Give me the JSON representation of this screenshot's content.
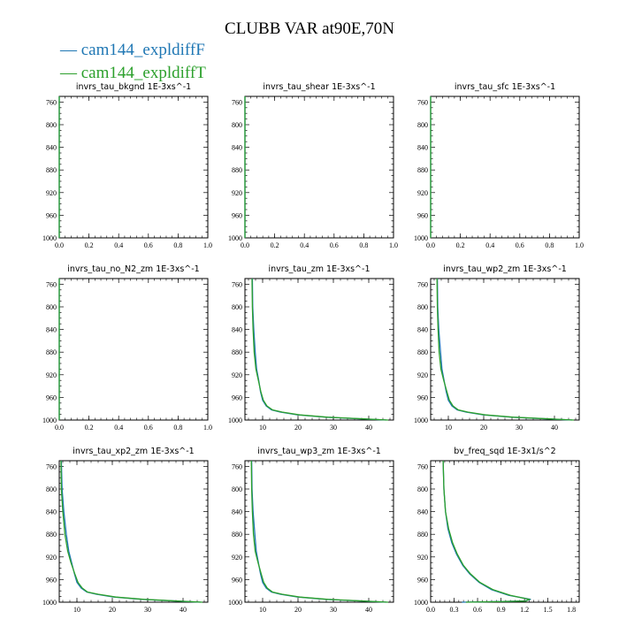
{
  "title": "CLUBB VAR at90E,70N",
  "legend": [
    {
      "label": "— cam144_expldiffF",
      "color": "#1f77b4"
    },
    {
      "label": "— cam144_expldiffT",
      "color": "#2ca02c"
    }
  ],
  "chart_data": [
    {
      "type": "line",
      "title": "invrs_tau_bkgnd 1E-3xs^-1",
      "xlim": [
        0,
        1
      ],
      "ylim": [
        1000,
        750
      ],
      "xticks": [
        0.0,
        0.2,
        0.4,
        0.6,
        0.8,
        1.0
      ],
      "xtick_labels": [
        "0.0",
        "0.2",
        "0.4",
        "0.6",
        "0.8",
        "1.0"
      ],
      "yticks": [
        760,
        800,
        840,
        880,
        920,
        960,
        1000
      ],
      "series": [
        {
          "name": "cam144_expldiffF",
          "color": "#1f77b4",
          "x": [
            0,
            0
          ],
          "y": [
            750,
            1000
          ]
        },
        {
          "name": "cam144_expldiffT",
          "color": "#2ca02c",
          "x": [
            0,
            0
          ],
          "y": [
            750,
            1000
          ]
        }
      ]
    },
    {
      "type": "line",
      "title": "invrs_tau_shear 1E-3xs^-1",
      "xlim": [
        0,
        1
      ],
      "ylim": [
        1000,
        750
      ],
      "xticks": [
        0.0,
        0.2,
        0.4,
        0.6,
        0.8,
        1.0
      ],
      "xtick_labels": [
        "0.0",
        "0.2",
        "0.4",
        "0.6",
        "0.8",
        "1.0"
      ],
      "yticks": [
        760,
        800,
        840,
        880,
        920,
        960,
        1000
      ],
      "series": [
        {
          "name": "cam144_expldiffF",
          "color": "#1f77b4",
          "x": [
            0,
            0
          ],
          "y": [
            750,
            1000
          ]
        },
        {
          "name": "cam144_expldiffT",
          "color": "#2ca02c",
          "x": [
            0,
            0
          ],
          "y": [
            750,
            1000
          ]
        }
      ]
    },
    {
      "type": "line",
      "title": "invrs_tau_sfc 1E-3xs^-1",
      "xlim": [
        0,
        1
      ],
      "ylim": [
        1000,
        750
      ],
      "xticks": [
        0.0,
        0.2,
        0.4,
        0.6,
        0.8,
        1.0
      ],
      "xtick_labels": [
        "0.0",
        "0.2",
        "0.4",
        "0.6",
        "0.8",
        "1.0"
      ],
      "yticks": [
        760,
        800,
        840,
        880,
        920,
        960,
        1000
      ],
      "series": [
        {
          "name": "cam144_expldiffF",
          "color": "#1f77b4",
          "x": [
            0,
            0
          ],
          "y": [
            750,
            1000
          ]
        },
        {
          "name": "cam144_expldiffT",
          "color": "#2ca02c",
          "x": [
            0,
            0
          ],
          "y": [
            750,
            1000
          ]
        }
      ]
    },
    {
      "type": "line",
      "title": "invrs_tau_no_N2_zm 1E-3xs^-1",
      "xlim": [
        0,
        1
      ],
      "ylim": [
        1000,
        750
      ],
      "xticks": [
        0.0,
        0.2,
        0.4,
        0.6,
        0.8,
        1.0
      ],
      "xtick_labels": [
        "0.0",
        "0.2",
        "0.4",
        "0.6",
        "0.8",
        "1.0"
      ],
      "yticks": [
        760,
        800,
        840,
        880,
        920,
        960,
        1000
      ],
      "series": [
        {
          "name": "cam144_expldiffF",
          "color": "#1f77b4",
          "x": [
            0,
            0
          ],
          "y": [
            750,
            1000
          ]
        },
        {
          "name": "cam144_expldiffT",
          "color": "#2ca02c",
          "x": [
            0,
            0
          ],
          "y": [
            750,
            1000
          ]
        }
      ]
    },
    {
      "type": "line",
      "title": "invrs_tau_zm 1E-3xs^-1",
      "xlim": [
        5,
        47
      ],
      "ylim": [
        1000,
        750
      ],
      "xticks": [
        10,
        20,
        30,
        40
      ],
      "xtick_labels": [
        "10",
        "20",
        "30",
        "40"
      ],
      "yticks": [
        760,
        800,
        840,
        880,
        920,
        960,
        1000
      ],
      "series": [
        {
          "name": "cam144_expldiffF",
          "color": "#1f77b4",
          "x": [
            7.1,
            7.2,
            7.5,
            7.9,
            8.3,
            8.9,
            9.4,
            10.0,
            11.0,
            12.5,
            15.0,
            20.0,
            28.0,
            38.0,
            45.0
          ],
          "y": [
            750,
            800,
            840,
            880,
            910,
            930,
            950,
            965,
            975,
            982,
            986,
            991,
            995,
            998,
            1000
          ]
        },
        {
          "name": "cam144_expldiffT",
          "color": "#2ca02c",
          "x": [
            7.0,
            7.1,
            7.3,
            7.6,
            8.1,
            8.8,
            9.5,
            10.2,
            11.2,
            12.8,
            15.5,
            20.5,
            28.5,
            38.5,
            45.5
          ],
          "y": [
            750,
            800,
            840,
            880,
            910,
            930,
            950,
            965,
            975,
            982,
            986,
            991,
            995,
            998,
            1000
          ]
        }
      ]
    },
    {
      "type": "line",
      "title": "invrs_tau_wp2_zm 1E-3xs^-1",
      "xlim": [
        5,
        47
      ],
      "ylim": [
        1000,
        750
      ],
      "xticks": [
        10,
        20,
        30,
        40
      ],
      "xtick_labels": [
        "10",
        "20",
        "30",
        "40"
      ],
      "yticks": [
        760,
        800,
        840,
        880,
        920,
        960,
        1000
      ],
      "series": [
        {
          "name": "cam144_expldiffF",
          "color": "#1f77b4",
          "x": [
            6.9,
            7.0,
            7.3,
            7.8,
            8.2,
            8.8,
            9.4,
            10.0,
            11.0,
            12.5,
            15.0,
            20.0,
            28.0,
            38.0,
            45.0
          ],
          "y": [
            750,
            800,
            840,
            880,
            910,
            930,
            950,
            965,
            975,
            982,
            986,
            991,
            995,
            998,
            1000
          ]
        },
        {
          "name": "cam144_expldiffT",
          "color": "#2ca02c",
          "x": [
            6.8,
            6.9,
            7.1,
            7.4,
            7.9,
            8.7,
            9.6,
            10.3,
            11.3,
            12.8,
            15.5,
            20.5,
            28.5,
            38.5,
            45.5
          ],
          "y": [
            750,
            800,
            840,
            880,
            910,
            930,
            950,
            965,
            975,
            982,
            986,
            991,
            995,
            998,
            1000
          ]
        }
      ]
    },
    {
      "type": "line",
      "title": "invrs_tau_xp2_zm 1E-3xs^-1",
      "xlim": [
        5,
        47
      ],
      "ylim": [
        1000,
        750
      ],
      "xticks": [
        10,
        20,
        30,
        40
      ],
      "xtick_labels": [
        "10",
        "20",
        "30",
        "40"
      ],
      "yticks": [
        760,
        800,
        840,
        880,
        920,
        960,
        1000
      ],
      "series": [
        {
          "name": "cam144_expldiffF",
          "color": "#1f77b4",
          "x": [
            5.6,
            5.8,
            6.3,
            7.0,
            7.7,
            8.5,
            9.3,
            10.0,
            11.2,
            12.8,
            15.5,
            20.5,
            28.5,
            38.0,
            45.0
          ],
          "y": [
            750,
            800,
            840,
            880,
            910,
            930,
            950,
            965,
            975,
            982,
            986,
            991,
            995,
            998,
            1000
          ]
        },
        {
          "name": "cam144_expldiffT",
          "color": "#2ca02c",
          "x": [
            5.5,
            5.6,
            6.0,
            6.6,
            7.4,
            8.3,
            9.4,
            10.3,
            11.5,
            13.0,
            16.0,
            21.0,
            29.0,
            38.5,
            45.5
          ],
          "y": [
            750,
            800,
            840,
            880,
            910,
            930,
            950,
            965,
            975,
            982,
            986,
            991,
            995,
            998,
            1000
          ]
        }
      ]
    },
    {
      "type": "line",
      "title": "invrs_tau_wp3_zm 1E-3xs^-1",
      "xlim": [
        5,
        47
      ],
      "ylim": [
        1000,
        750
      ],
      "xticks": [
        10,
        20,
        30,
        40
      ],
      "xtick_labels": [
        "10",
        "20",
        "30",
        "40"
      ],
      "yticks": [
        760,
        800,
        840,
        880,
        920,
        960,
        1000
      ],
      "series": [
        {
          "name": "cam144_expldiffF",
          "color": "#1f77b4",
          "x": [
            6.9,
            7.0,
            7.3,
            7.8,
            8.2,
            8.8,
            9.4,
            10.0,
            11.0,
            12.5,
            15.0,
            20.0,
            28.0,
            38.0,
            45.0
          ],
          "y": [
            750,
            800,
            840,
            880,
            910,
            930,
            950,
            965,
            975,
            982,
            986,
            991,
            995,
            998,
            1000
          ]
        },
        {
          "name": "cam144_expldiffT",
          "color": "#2ca02c",
          "x": [
            6.8,
            6.9,
            7.1,
            7.4,
            7.9,
            8.7,
            9.6,
            10.3,
            11.3,
            12.8,
            15.5,
            20.5,
            28.5,
            38.5,
            45.5
          ],
          "y": [
            750,
            800,
            840,
            880,
            910,
            930,
            950,
            965,
            975,
            982,
            986,
            991,
            995,
            998,
            1000
          ]
        }
      ]
    },
    {
      "type": "line",
      "title": "bv_freq_sqd 1E-3x1/s^2",
      "xlim": [
        0,
        1.9
      ],
      "ylim": [
        1000,
        750
      ],
      "xticks": [
        0.0,
        0.3,
        0.6,
        0.9,
        1.2,
        1.5,
        1.8
      ],
      "xtick_labels": [
        "0.0",
        "0.3",
        "0.6",
        "0.9",
        "1.2",
        "1.5",
        "1.8"
      ],
      "yticks": [
        760,
        800,
        840,
        880,
        920,
        960,
        1000
      ],
      "series": [
        {
          "name": "cam144_expldiffF",
          "color": "#1f77b4",
          "x": [
            0.16,
            0.17,
            0.19,
            0.22,
            0.27,
            0.33,
            0.41,
            0.5,
            0.62,
            0.78,
            1.0,
            1.28,
            1.2,
            0.8,
            0.4
          ],
          "y": [
            750,
            800,
            840,
            870,
            895,
            915,
            935,
            950,
            965,
            978,
            988,
            995,
            998,
            999,
            1000
          ]
        },
        {
          "name": "cam144_expldiffT",
          "color": "#2ca02c",
          "x": [
            0.16,
            0.17,
            0.19,
            0.23,
            0.28,
            0.34,
            0.42,
            0.51,
            0.63,
            0.8,
            1.02,
            1.26,
            1.22,
            0.85,
            0.45
          ],
          "y": [
            750,
            800,
            840,
            870,
            895,
            915,
            935,
            950,
            965,
            978,
            988,
            995,
            998,
            999,
            1000
          ]
        }
      ]
    }
  ]
}
